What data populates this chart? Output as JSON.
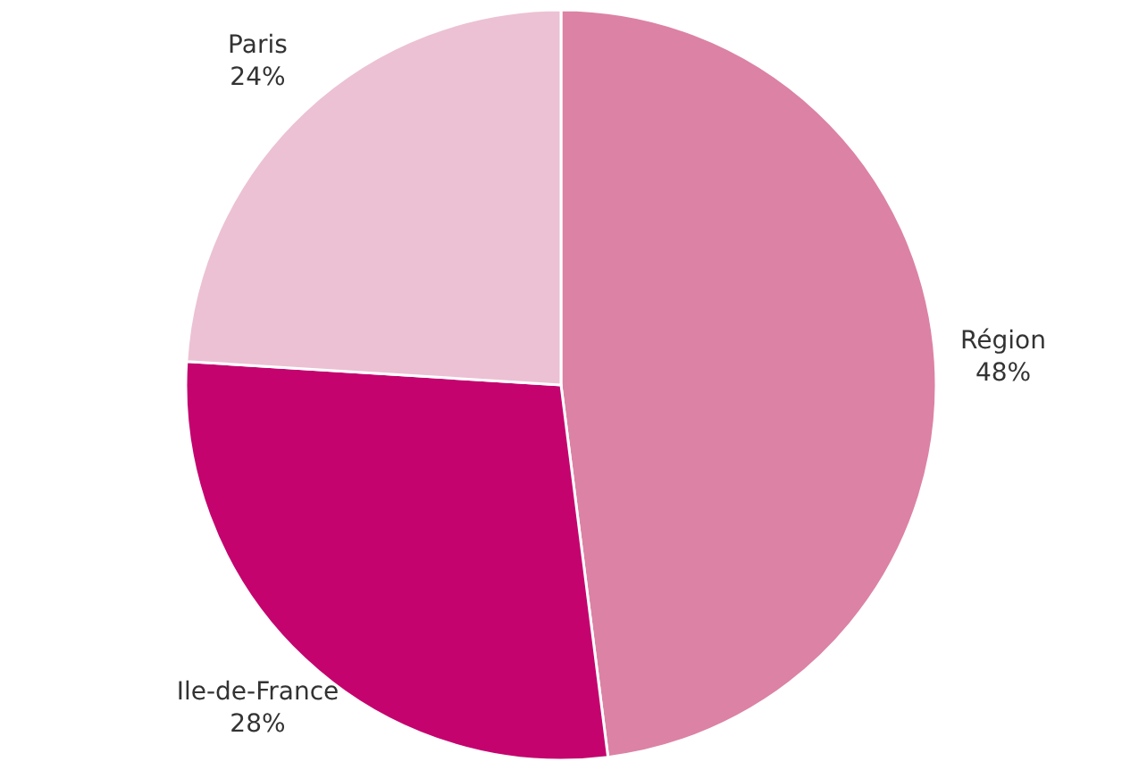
{
  "chart_data": {
    "type": "pie",
    "categories": [
      "Région",
      "Ile-de-France",
      "Paris"
    ],
    "values": [
      48,
      28,
      24
    ],
    "value_labels": [
      "48%",
      "28%",
      "24%"
    ],
    "colors": [
      "#dc82a5",
      "#c4036f",
      "#ecc1d3"
    ]
  }
}
